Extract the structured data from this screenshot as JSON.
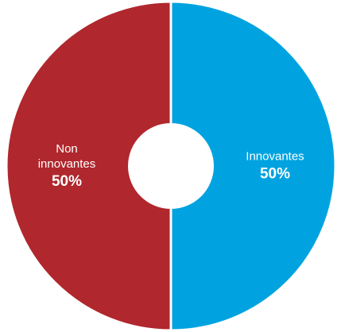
{
  "chart_data": {
    "type": "pie",
    "donut": true,
    "title": "",
    "slices": [
      {
        "label_lines": [
          "Innovantes"
        ],
        "value": 50,
        "value_label": "50%",
        "color": "#00a3e0"
      },
      {
        "label_lines": [
          "Non",
          "innovantes"
        ],
        "value": 50,
        "value_label": "50%",
        "color": "#b0272d"
      }
    ],
    "separator_color": "#ffffff",
    "center_color": "#ffffff",
    "legend": "none"
  }
}
